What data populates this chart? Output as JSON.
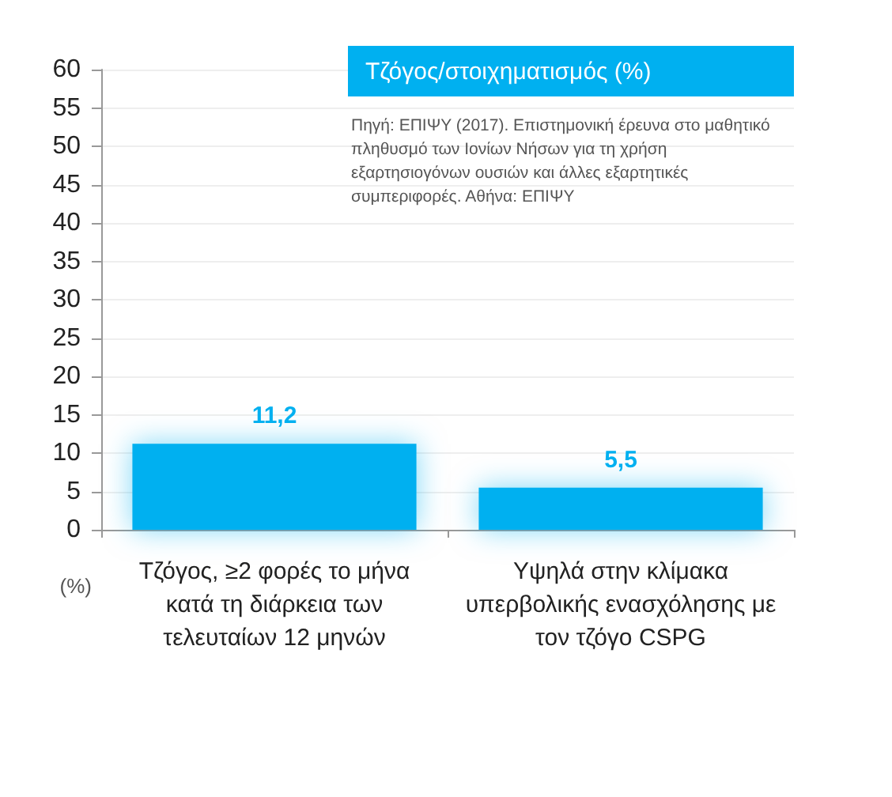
{
  "chart_data": {
    "type": "bar",
    "title": "Τζόγος/στοιχηματισμός (%)",
    "annotations": [
      "Πηγή: ΕΠΙΨΥ (2017). Επιστημονική έρευνα στο μαθητικό πληθυσμό των Ιονίων Νήσων για τη χρήση εξαρτησιογόνων ουσιών και άλλες εξαρτητικές συμπεριφορές. Αθήνα: ΕΠΙΨΥ"
    ],
    "ylabel": "(%)",
    "categories": [
      "Τζόγος, ≥2 φορές το μήνα κατά τη διάρκεια των τελευταίων 12 μηνών",
      "Υψηλά στην κλίμακα υπερβολικής ενασχόλησης με τον τζόγο CSPG"
    ],
    "values": [
      11.2,
      5.5
    ],
    "color": "#00b0f0",
    "value_labels": [
      "11,2",
      "5,5"
    ],
    "ylim": [
      0,
      60
    ],
    "yticks": [
      0,
      5,
      10,
      15,
      20,
      25,
      30,
      35,
      40,
      45,
      50,
      55,
      60
    ],
    "grid": "y"
  }
}
